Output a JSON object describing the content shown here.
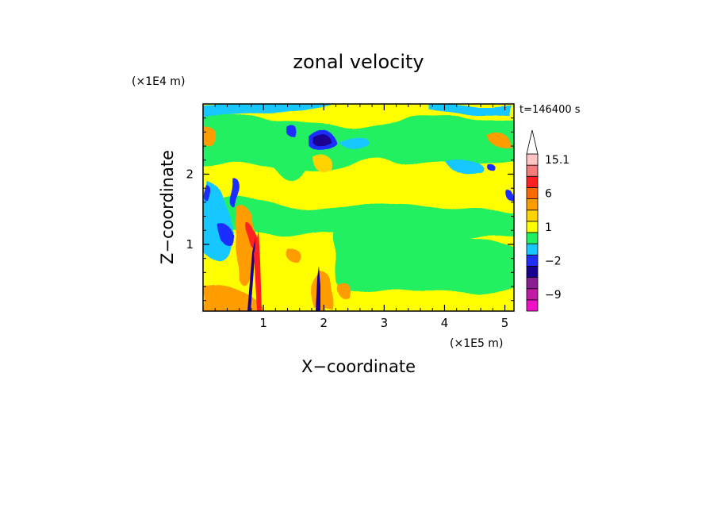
{
  "chart_data": {
    "type": "heatmap",
    "title": "zonal velocity",
    "xlabel": "X−coordinate",
    "ylabel": "Z−coordinate",
    "x_unit": "(×1E5 m)",
    "y_unit": "(×1E4 m)",
    "time_label": "t=146400 s",
    "xlim": [
      0,
      5.15
    ],
    "ylim": [
      0.05,
      3.0
    ],
    "x_ticks": [
      {
        "value": 1,
        "label": "1"
      },
      {
        "value": 2,
        "label": "2"
      },
      {
        "value": 3,
        "label": "3"
      },
      {
        "value": 4,
        "label": "4"
      },
      {
        "value": 5,
        "label": "5"
      }
    ],
    "y_ticks": [
      {
        "value": 1,
        "label": "1"
      },
      {
        "value": 2,
        "label": "2"
      }
    ],
    "colorbar": {
      "levels": [
        {
          "color": "#f10fc8",
          "label": ""
        },
        {
          "color": "#c21aa6",
          "label": "−9"
        },
        {
          "color": "#8a1d92",
          "label": ""
        },
        {
          "color": "#1a0090",
          "label": ""
        },
        {
          "color": "#1e2fff",
          "label": "−2"
        },
        {
          "color": "#18c8ff",
          "label": ""
        },
        {
          "color": "#22f060",
          "label": ""
        },
        {
          "color": "#ffff00",
          "label": "1"
        },
        {
          "color": "#ffd300",
          "label": ""
        },
        {
          "color": "#ff9d00",
          "label": ""
        },
        {
          "color": "#ff6a00",
          "label": "6"
        },
        {
          "color": "#ff2020",
          "label": ""
        },
        {
          "color": "#f57c7c",
          "label": ""
        },
        {
          "color": "#ffc4c4",
          "label": "15.1"
        },
        {
          "color": "#ffffff",
          "label": ""
        }
      ]
    }
  }
}
